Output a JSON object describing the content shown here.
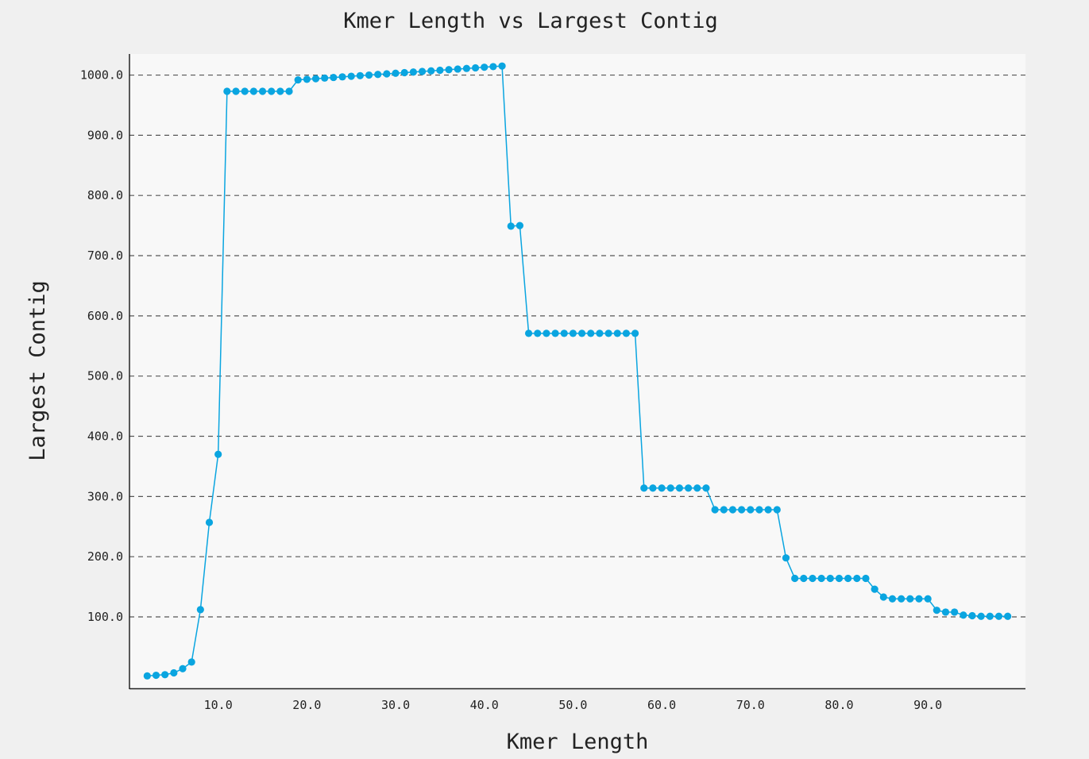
{
  "chart_data": {
    "type": "line",
    "title": "Kmer Length vs Largest Contig",
    "xlabel": "Kmer Length",
    "ylabel": "Largest Contig",
    "xlim": [
      0,
      101
    ],
    "ylim": [
      -20,
      1035
    ],
    "x_ticks": [
      10,
      20,
      30,
      40,
      50,
      60,
      70,
      80,
      90
    ],
    "x_tick_labels": [
      "10.0",
      "20.0",
      "30.0",
      "40.0",
      "50.0",
      "60.0",
      "70.0",
      "80.0",
      "90.0"
    ],
    "y_ticks": [
      100,
      200,
      300,
      400,
      500,
      600,
      700,
      800,
      900,
      1000
    ],
    "y_tick_labels": [
      "100.0",
      "200.0",
      "300.0",
      "400.0",
      "500.0",
      "600.0",
      "700.0",
      "800.0",
      "900.0",
      "1000.0"
    ],
    "grid": "horizontal dashed",
    "legend": "none",
    "series": [
      {
        "color": "#0aa5e0",
        "x": [
          2,
          3,
          4,
          5,
          6,
          7,
          8,
          9,
          10,
          11,
          12,
          13,
          14,
          15,
          16,
          17,
          18,
          19,
          20,
          21,
          22,
          23,
          24,
          25,
          26,
          27,
          28,
          29,
          30,
          31,
          32,
          33,
          34,
          35,
          36,
          37,
          38,
          39,
          40,
          41,
          42,
          43,
          44,
          45,
          46,
          47,
          48,
          49,
          50,
          51,
          52,
          53,
          54,
          55,
          56,
          57,
          58,
          59,
          60,
          61,
          62,
          63,
          64,
          65,
          66,
          67,
          68,
          69,
          70,
          71,
          72,
          73,
          74,
          75,
          76,
          77,
          78,
          79,
          80,
          81,
          82,
          83,
          84,
          85,
          86,
          87,
          88,
          89,
          90,
          91,
          92,
          93,
          94,
          95,
          96,
          97,
          98,
          99
        ],
        "y": [
          2,
          3,
          4,
          7,
          14,
          25,
          112,
          257,
          370,
          973,
          973,
          973,
          973,
          973,
          973,
          973,
          973,
          992,
          993,
          994,
          995,
          996,
          997,
          998,
          999,
          1000,
          1001,
          1002,
          1003,
          1004,
          1005,
          1006,
          1007,
          1008,
          1009,
          1010,
          1011,
          1012,
          1013,
          1014,
          1015,
          749,
          750,
          571,
          571,
          571,
          571,
          571,
          571,
          571,
          571,
          571,
          571,
          571,
          571,
          571,
          314,
          314,
          314,
          314,
          314,
          314,
          314,
          314,
          278,
          278,
          278,
          278,
          278,
          278,
          278,
          278,
          198,
          164,
          164,
          164,
          164,
          164,
          164,
          164,
          164,
          164,
          146,
          133,
          130,
          130,
          130,
          130,
          130,
          111,
          108,
          108,
          103,
          102,
          101,
          101,
          101,
          101
        ]
      }
    ]
  }
}
